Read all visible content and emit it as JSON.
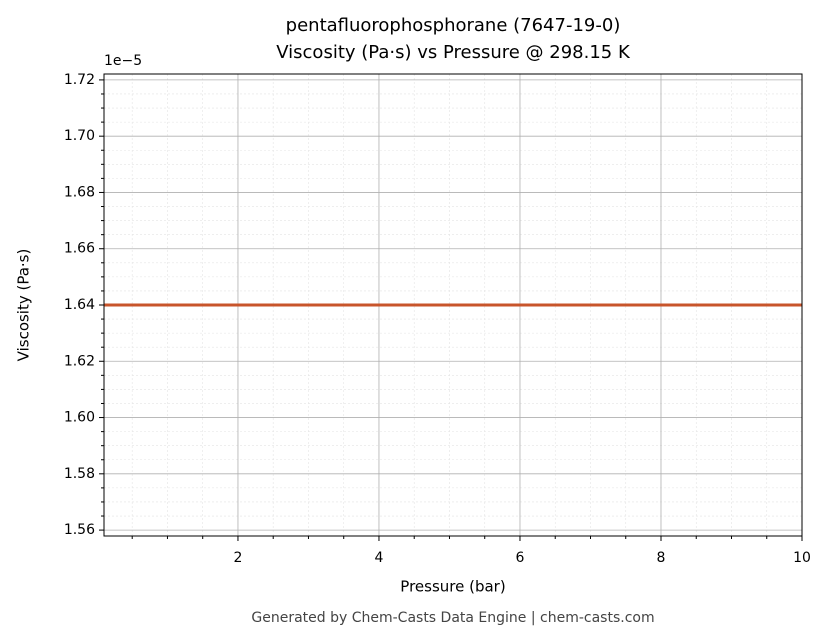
{
  "chart_data": {
    "type": "line",
    "title": "pentafluorophosphorane (7647-19-0)",
    "subtitle": "Viscosity (Pa·s) vs Pressure @ 298.15 K",
    "x_label": "Pressure (bar)",
    "y_label": "Viscosity (Pa·s)",
    "y_offset_label": "1e−5",
    "footer": "Generated by Chem-Casts Data Engine | chem-casts.com",
    "x": [
      0.1,
      10
    ],
    "series": [
      {
        "name": "Viscosity",
        "color": "#c8552b",
        "values": [
          1.64e-05,
          1.64e-05
        ]
      }
    ],
    "xlim": [
      0.1,
      10
    ],
    "ylim": [
      1.5579e-05,
      1.7221e-05
    ],
    "xticks": [
      2,
      4,
      6,
      8,
      10
    ],
    "yticks": [
      {
        "value": 1.56e-05,
        "label": "1.56"
      },
      {
        "value": 1.58e-05,
        "label": "1.58"
      },
      {
        "value": 1.6e-05,
        "label": "1.60"
      },
      {
        "value": 1.62e-05,
        "label": "1.62"
      },
      {
        "value": 1.64e-05,
        "label": "1.64"
      },
      {
        "value": 1.66e-05,
        "label": "1.66"
      },
      {
        "value": 1.68e-05,
        "label": "1.68"
      },
      {
        "value": 1.7e-05,
        "label": "1.70"
      },
      {
        "value": 1.72e-05,
        "label": "1.72"
      }
    ],
    "xminorticks": [
      0.5,
      1,
      1.5,
      2.5,
      3,
      3.5,
      4.5,
      5,
      5.5,
      6.5,
      7,
      7.5,
      8.5,
      9,
      9.5
    ],
    "yminorticks": [
      1.565e-05,
      1.57e-05,
      1.575e-05,
      1.585e-05,
      1.59e-05,
      1.595e-05,
      1.605e-05,
      1.61e-05,
      1.615e-05,
      1.625e-05,
      1.63e-05,
      1.635e-05,
      1.645e-05,
      1.65e-05,
      1.655e-05,
      1.665e-05,
      1.67e-05,
      1.675e-05,
      1.685e-05,
      1.69e-05,
      1.695e-05,
      1.705e-05,
      1.71e-05,
      1.715e-05
    ],
    "grid": true
  }
}
